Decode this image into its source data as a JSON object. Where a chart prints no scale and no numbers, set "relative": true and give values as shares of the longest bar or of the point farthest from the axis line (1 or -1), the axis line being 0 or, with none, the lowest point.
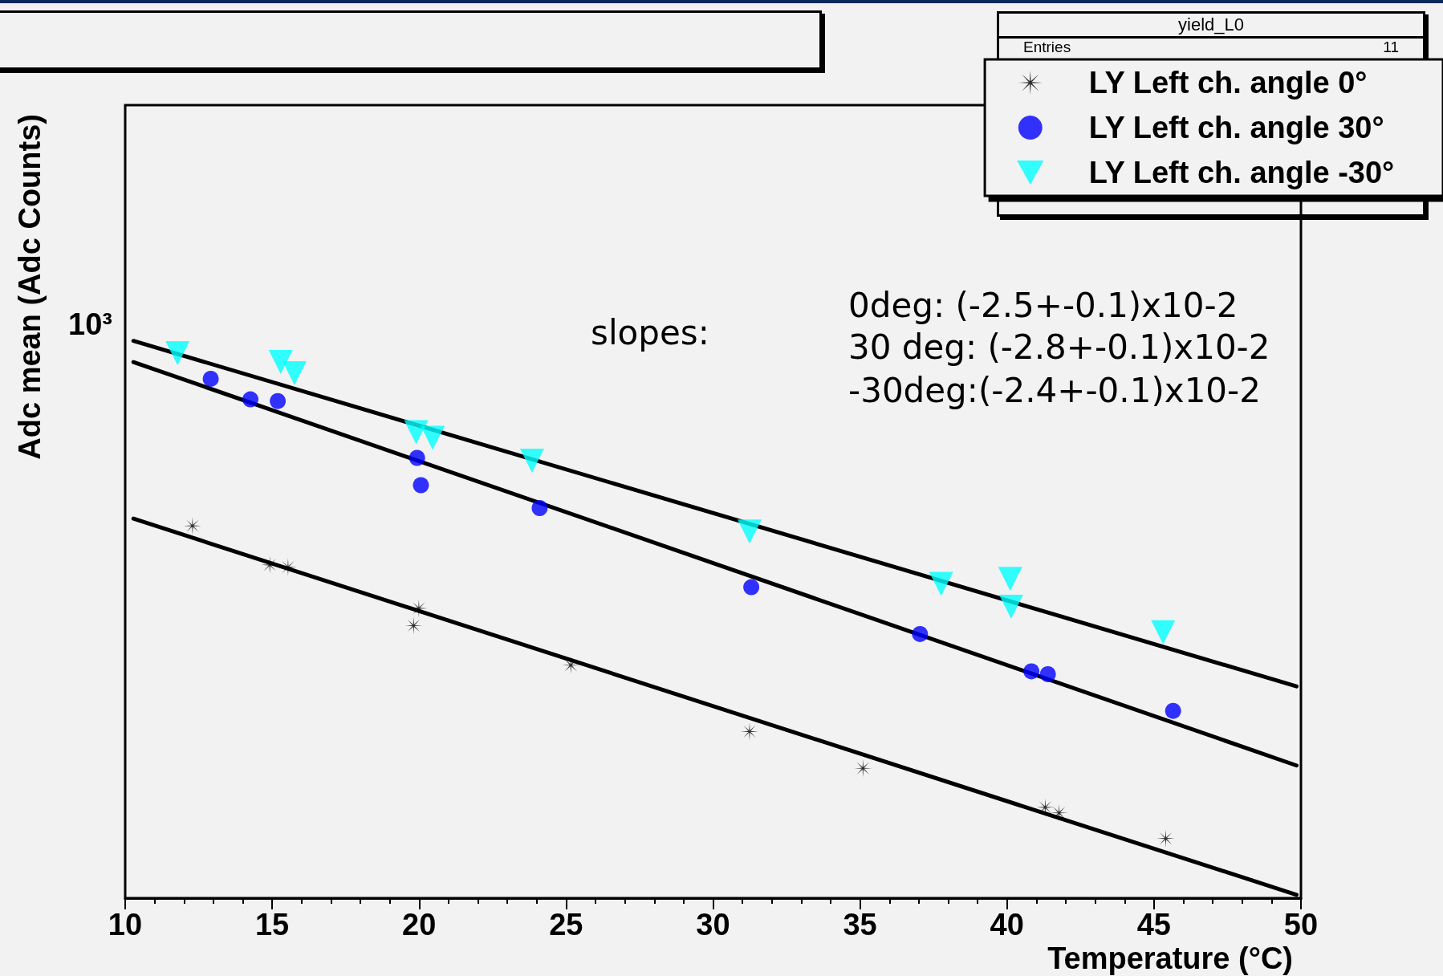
{
  "chart_data": {
    "type": "scatter",
    "xlabel": "Temperature (°C)",
    "ylabel": "Adc mean (Adc Counts)",
    "xlim": [
      10,
      50
    ],
    "xticks": [
      10,
      {
        "value": 11,
        "label": null
      },
      {
        "value": 12,
        "label": null
      },
      {
        "value": 13,
        "label": null
      },
      {
        "value": 14,
        "label": null
      },
      15,
      {
        "value": 16,
        "label": null
      },
      {
        "value": 17,
        "label": null
      },
      {
        "value": 18,
        "label": null
      },
      {
        "value": 19,
        "label": null
      },
      20,
      {
        "value": 21,
        "label": null
      },
      {
        "value": 22,
        "label": null
      },
      {
        "value": 23,
        "label": null
      },
      {
        "value": 24,
        "label": null
      },
      25,
      {
        "value": 26,
        "label": null
      },
      {
        "value": 27,
        "label": null
      },
      {
        "value": 28,
        "label": null
      },
      {
        "value": 29,
        "label": null
      },
      30,
      {
        "value": 31,
        "label": null
      },
      {
        "value": 32,
        "label": null
      },
      {
        "value": 33,
        "label": null
      },
      {
        "value": 34,
        "label": null
      },
      35,
      {
        "value": 36,
        "label": null
      },
      {
        "value": 37,
        "label": null
      },
      {
        "value": 38,
        "label": null
      },
      {
        "value": 39,
        "label": null
      },
      40,
      {
        "value": 41,
        "label": null
      },
      {
        "value": 42,
        "label": null
      },
      {
        "value": 43,
        "label": null
      },
      {
        "value": 44,
        "label": null
      },
      45,
      {
        "value": 46,
        "label": null
      },
      {
        "value": 47,
        "label": null
      },
      {
        "value": 48,
        "label": null
      },
      {
        "value": 49,
        "label": null
      },
      50
    ],
    "relative": true,
    "grid": false,
    "legend": "top right",
    "series": [
      {
        "name": "LY Left ch. angle 0°",
        "color": "#000000",
        "marker": "cross",
        "x": [
          12.29,
          14.92,
          15.54,
          19.81,
          19.99,
          25.16,
          31.24,
          35.1,
          41.3,
          41.77,
          45.4
        ],
        "values": [
          0.668,
          0.598,
          0.594,
          0.489,
          0.52,
          0.418,
          0.299,
          0.233,
          0.163,
          0.153,
          0.107
        ]
      },
      {
        "name": "LY Left ch. angle 30°",
        "color": "#0000ff",
        "marker": "circle",
        "x": [
          12.91,
          14.26,
          15.19,
          19.93,
          20.06,
          24.1,
          31.3,
          37.04,
          40.83,
          41.39,
          45.65
        ],
        "values": [
          0.932,
          0.895,
          0.892,
          0.79,
          0.741,
          0.7,
          0.558,
          0.474,
          0.407,
          0.402,
          0.336
        ]
      },
      {
        "name": "LY Left ch. angle -30°",
        "color": "#00ffff",
        "marker": "triangle",
        "x": [
          11.78,
          15.29,
          15.76,
          19.9,
          20.46,
          23.84,
          31.24,
          37.76,
          40.11,
          40.14,
          45.31
        ],
        "values": [
          0.978,
          0.962,
          0.942,
          0.836,
          0.826,
          0.785,
          0.658,
          0.564,
          0.573,
          0.523,
          0.477
        ]
      },
      {
        "type": "line",
        "color": "#000000",
        "marker": "none",
        "x": [
          10.28,
          49.85
        ],
        "values": [
          1,
          0.38
        ]
      },
      {
        "type": "line",
        "color": "#000000",
        "marker": "none",
        "x": [
          10.28,
          49.85
        ],
        "values": [
          0.962,
          0.238
        ]
      },
      {
        "type": "line",
        "color": "#000000",
        "marker": "none",
        "x": [
          10.28,
          49.85
        ],
        "values": [
          0.681,
          0.006
        ]
      }
    ],
    "annotations": [
      "slopes:",
      "0deg: (-2.5+-0.1)x10-2",
      "30 deg: (-2.8+-0.1)x10-2",
      "-30deg:(-2.4+-0.1)x10-2",
      "yield_L0",
      "Entries",
      "11",
      "10³"
    ]
  }
}
